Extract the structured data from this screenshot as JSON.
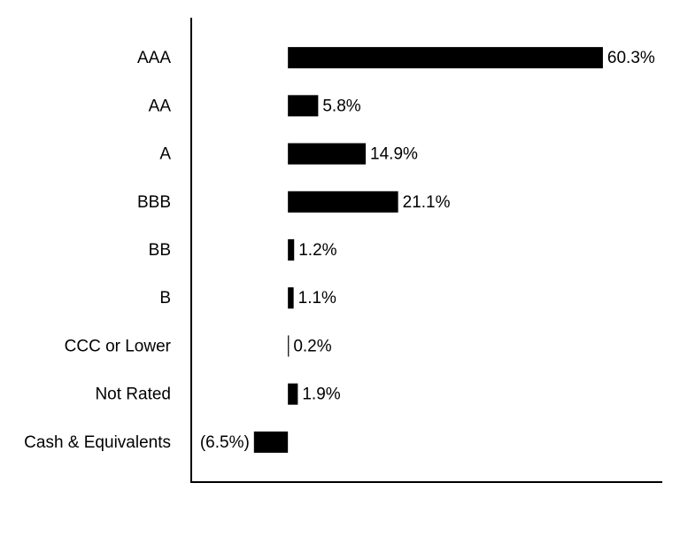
{
  "chart_data": {
    "type": "bar",
    "orientation": "horizontal",
    "categories": [
      "AAA",
      "AA",
      "A",
      "BBB",
      "BB",
      "B",
      "CCC or Lower",
      "Not Rated",
      "Cash & Equivalents"
    ],
    "values": [
      60.3,
      5.8,
      14.9,
      21.1,
      1.2,
      1.1,
      0.2,
      1.9,
      -6.5
    ],
    "value_labels": [
      "60.3%",
      "5.8%",
      "14.9%",
      "21.1%",
      "1.2%",
      "1.1%",
      "0.2%",
      "1.9%",
      "(6.5%)"
    ],
    "color": "#000000",
    "xlim": [
      -18.5,
      71.5
    ]
  }
}
